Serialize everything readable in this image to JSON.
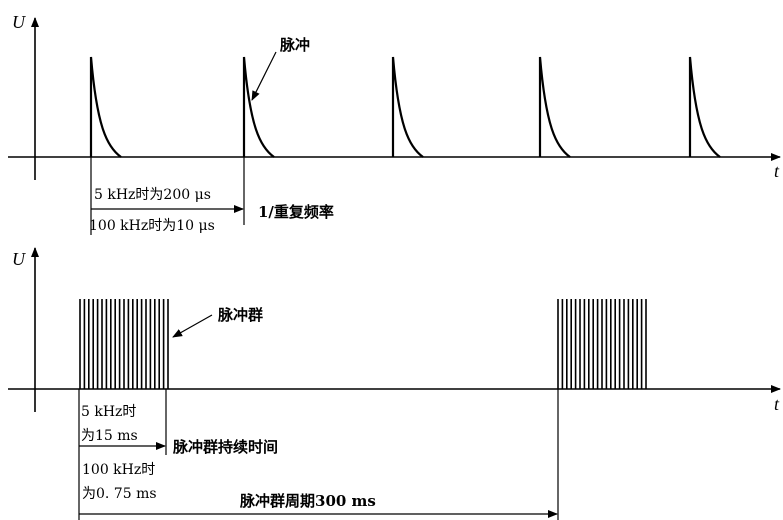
{
  "top_panel": {
    "y_axis_label": "U",
    "x_axis_label": "t",
    "pulse_label": "脉冲",
    "interval_label_5khz": "5 kHz时为200 μs",
    "interval_label_100khz": "100 kHz时为10 μs",
    "repetition_label": "1/重复频率"
  },
  "bottom_panel": {
    "y_axis_label": "U",
    "x_axis_label": "t",
    "burst_label": "脉冲群",
    "burst_5khz_line1": "5 kHz时",
    "burst_5khz_line2": "为15 ms",
    "burst_duration_label": "脉冲群持续时间",
    "burst_100khz_line1": "100 kHz时",
    "burst_100khz_line2": "为0. 75 ms",
    "burst_period_label": "脉冲群周期300 ms"
  }
}
